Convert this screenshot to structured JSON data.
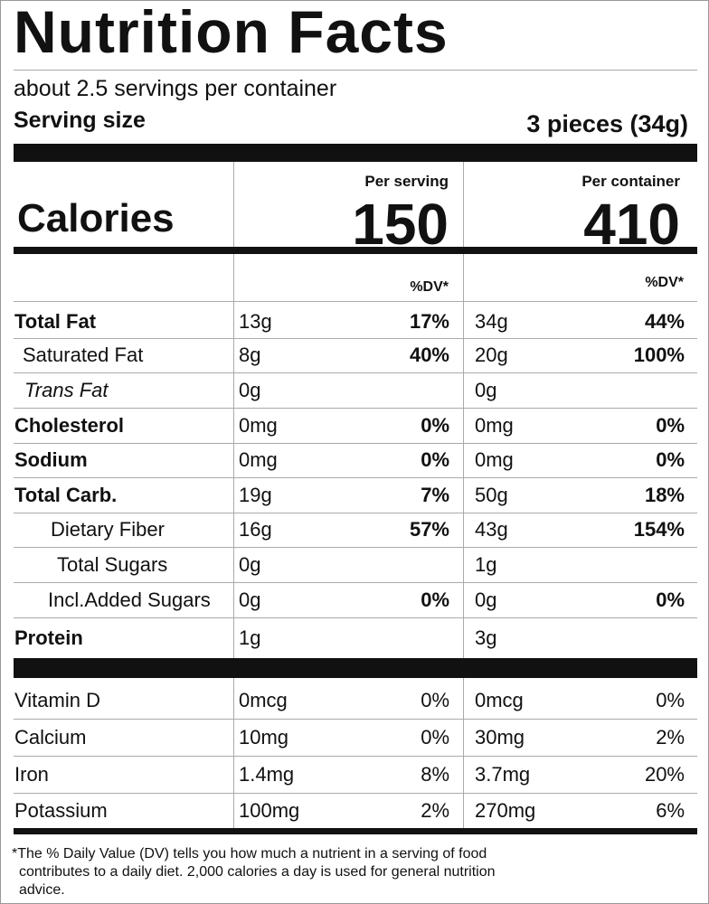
{
  "title": "Nutrition Facts",
  "servings": "about 2.5 servings per container",
  "serving_size_label": "Serving size",
  "serving_size": "3 pieces (34g)",
  "calories": {
    "label": "Calories",
    "per_serving_label": "Per serving",
    "per_serving": "150",
    "per_container_label": "Per container",
    "per_container": "410"
  },
  "dv_header": [
    "%DV*",
    "%DV*"
  ],
  "nutrients": [
    {
      "name": "Total Fat",
      "serving_amount": "13g",
      "serving_dv": "17%",
      "container_amount": "34g",
      "container_dv": "44%"
    },
    {
      "name": "Saturated Fat",
      "serving_amount": "8g",
      "serving_dv": "40%",
      "container_amount": "20g",
      "container_dv": "100%"
    },
    {
      "name": "Trans Fat",
      "serving_amount": "0g",
      "container_amount": "0g"
    },
    {
      "name": "Cholesterol",
      "serving_amount": "0mg",
      "serving_dv": "0%",
      "container_amount": "0mg",
      "container_dv": "0%"
    },
    {
      "name": "Sodium",
      "serving_amount": "0mg",
      "serving_dv": "0%",
      "container_amount": "0mg",
      "container_dv": "0%"
    },
    {
      "name": "Total Carb.",
      "serving_amount": "19g",
      "serving_dv": "7%",
      "container_amount": "50g",
      "container_dv": "18%"
    },
    {
      "name": "Dietary Fiber",
      "serving_amount": "16g",
      "serving_dv": "57%",
      "container_amount": "43g",
      "container_dv": "154%"
    },
    {
      "name": "Total Sugars",
      "serving_amount": "0g",
      "container_amount": "1g"
    },
    {
      "name": "Incl.Added Sugars",
      "serving_amount": "0g",
      "serving_dv": "0%",
      "container_amount": "0g",
      "container_dv": "0%"
    },
    {
      "name": "Protein",
      "serving_amount": "1g",
      "container_amount": "3g"
    }
  ],
  "vitamins": [
    {
      "name": "Vitamin D",
      "serving_amount": "0mcg",
      "serving_dv": "0%",
      "container_amount": "0mcg",
      "container_dv": "0%"
    },
    {
      "name": "Calcium",
      "serving_amount": "10mg",
      "serving_dv": "0%",
      "container_amount": "30mg",
      "container_dv": "2%"
    },
    {
      "name": "Iron",
      "serving_amount": "1.4mg",
      "serving_dv": "8%",
      "container_amount": "3.7mg",
      "container_dv": "20%"
    },
    {
      "name": "Potassium",
      "serving_amount": "100mg",
      "serving_dv": "2%",
      "container_amount": "270mg",
      "container_dv": "6%"
    }
  ],
  "footnote": "*The % Daily Value (DV) tells you how much a nutrient in a serving of food contributes to a daily diet. 2,000 calories a day is used for general nutrition advice."
}
